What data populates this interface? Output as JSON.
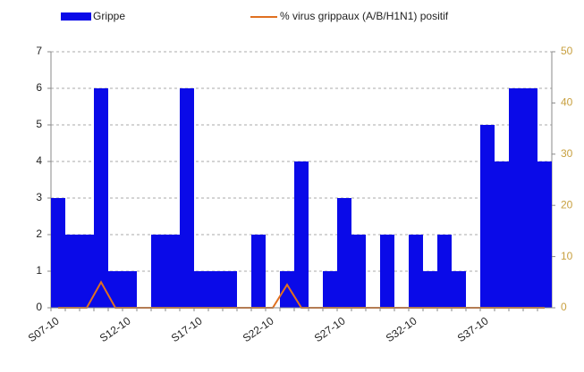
{
  "chart_data": {
    "type": "bar",
    "categories": [
      "S07-10",
      null,
      null,
      null,
      null,
      "S12-10",
      null,
      null,
      null,
      null,
      "S17-10",
      null,
      null,
      null,
      null,
      "S22-10",
      null,
      null,
      null,
      null,
      "S27-10",
      null,
      null,
      null,
      null,
      "S32-10",
      null,
      null,
      null,
      null,
      "S37-10",
      null,
      null,
      null,
      null
    ],
    "series": [
      {
        "name": "Grippe",
        "type": "bar",
        "color": "#0a0ae8",
        "values": [
          3,
          2,
          2,
          6,
          1,
          1,
          0,
          2,
          2,
          6,
          1,
          1,
          1,
          0,
          2,
          0,
          1,
          4,
          0,
          1,
          3,
          2,
          0,
          2,
          0,
          2,
          1,
          2,
          1,
          0,
          5,
          4,
          6,
          6,
          4
        ]
      },
      {
        "name": "% virus grippaux (A/B/H1N1) positif",
        "type": "line",
        "axis": "y2",
        "color": "#e07020",
        "values": [
          0,
          0,
          0,
          5,
          0,
          0,
          0,
          0,
          0,
          0,
          0,
          0,
          0,
          0,
          0,
          0,
          4.5,
          0,
          0,
          0,
          0,
          0,
          0,
          0,
          0,
          0,
          0,
          0,
          0,
          0,
          0,
          0,
          0,
          0,
          0
        ]
      }
    ],
    "ylim": [
      0,
      7
    ],
    "yticks": [
      0,
      1,
      2,
      3,
      4,
      5,
      6,
      7
    ],
    "y2lim": [
      0,
      50
    ],
    "y2ticks": [
      0,
      10,
      20,
      30,
      40,
      50
    ],
    "y2tick_color": "#c8a040",
    "grid": true
  }
}
